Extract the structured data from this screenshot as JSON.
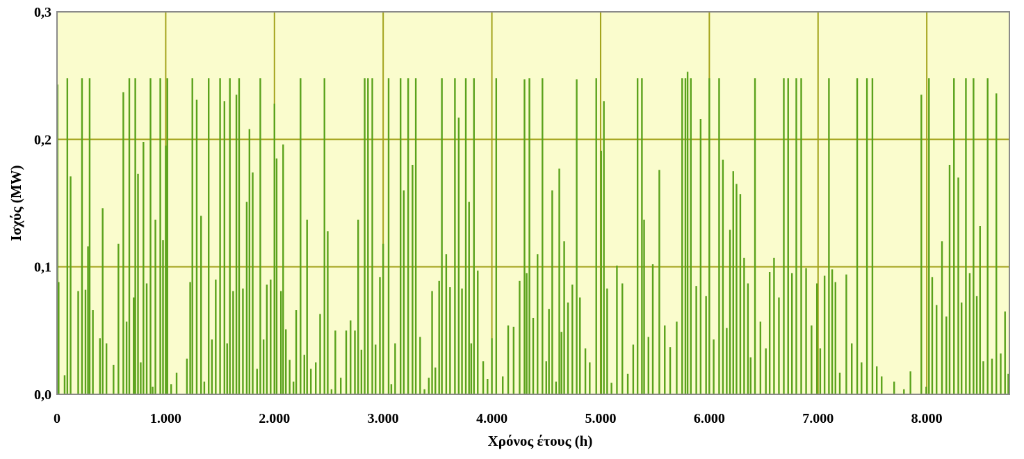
{
  "chart_data": {
    "type": "bar",
    "title": "",
    "xlabel": "Χρόνος έτους (h)",
    "ylabel": "Ισχύς (MW)",
    "xlim": [
      0,
      8760
    ],
    "ylim": [
      0,
      0.3
    ],
    "x_ticks": [
      {
        "value": 0,
        "label": "0"
      },
      {
        "value": 1000,
        "label": "1.000"
      },
      {
        "value": 2000,
        "label": "2.000"
      },
      {
        "value": 3000,
        "label": "3.000"
      },
      {
        "value": 4000,
        "label": "4.000"
      },
      {
        "value": 5000,
        "label": "5.000"
      },
      {
        "value": 6000,
        "label": "6.000"
      },
      {
        "value": 7000,
        "label": "7.000"
      },
      {
        "value": 8000,
        "label": "8.000"
      }
    ],
    "y_ticks": [
      {
        "value": 0,
        "label": "0,0"
      },
      {
        "value": 0.1,
        "label": "0,1"
      },
      {
        "value": 0.2,
        "label": "0,2"
      },
      {
        "value": 0.3,
        "label": "0,3"
      }
    ],
    "grid": true,
    "colors": {
      "plot_background": "#fafccd",
      "gridline": "#a3a31c",
      "series": "#5aa21c",
      "frame": "#8a8a8a"
    },
    "series": [
      {
        "values": [
          [
            5,
            0.243
          ],
          [
            15,
            0.088
          ],
          [
            70,
            0.015
          ],
          [
            95,
            0.248
          ],
          [
            125,
            0.171
          ],
          [
            195,
            0.081
          ],
          [
            230,
            0.248
          ],
          [
            262,
            0.082
          ],
          [
            285,
            0.116
          ],
          [
            300,
            0.248
          ],
          [
            330,
            0.066
          ],
          [
            395,
            0.044
          ],
          [
            420,
            0.146
          ],
          [
            455,
            0.04
          ],
          [
            520,
            0.023
          ],
          [
            565,
            0.118
          ],
          [
            610,
            0.237
          ],
          [
            640,
            0.057
          ],
          [
            665,
            0.248
          ],
          [
            705,
            0.076
          ],
          [
            720,
            0.248
          ],
          [
            745,
            0.173
          ],
          [
            770,
            0.025
          ],
          [
            795,
            0.198
          ],
          [
            825,
            0.087
          ],
          [
            860,
            0.248
          ],
          [
            880,
            0.006
          ],
          [
            905,
            0.137
          ],
          [
            950,
            0.248
          ],
          [
            975,
            0.121
          ],
          [
            1000,
            0.195
          ],
          [
            1015,
            0.248
          ],
          [
            1050,
            0.008
          ],
          [
            1100,
            0.017
          ],
          [
            1195,
            0.028
          ],
          [
            1225,
            0.088
          ],
          [
            1245,
            0.248
          ],
          [
            1285,
            0.231
          ],
          [
            1325,
            0.14
          ],
          [
            1355,
            0.01
          ],
          [
            1395,
            0.248
          ],
          [
            1425,
            0.043
          ],
          [
            1460,
            0.09
          ],
          [
            1500,
            0.248
          ],
          [
            1540,
            0.23
          ],
          [
            1565,
            0.04
          ],
          [
            1590,
            0.248
          ],
          [
            1620,
            0.081
          ],
          [
            1650,
            0.235
          ],
          [
            1675,
            0.248
          ],
          [
            1710,
            0.083
          ],
          [
            1745,
            0.151
          ],
          [
            1770,
            0.208
          ],
          [
            1800,
            0.174
          ],
          [
            1840,
            0.02
          ],
          [
            1870,
            0.248
          ],
          [
            1900,
            0.043
          ],
          [
            1930,
            0.086
          ],
          [
            1965,
            0.09
          ],
          [
            2000,
            0.228
          ],
          [
            2020,
            0.185
          ],
          [
            2060,
            0.081
          ],
          [
            2080,
            0.196
          ],
          [
            2105,
            0.051
          ],
          [
            2140,
            0.027
          ],
          [
            2175,
            0.01
          ],
          [
            2200,
            0.066
          ],
          [
            2240,
            0.248
          ],
          [
            2275,
            0.031
          ],
          [
            2300,
            0.137
          ],
          [
            2335,
            0.02
          ],
          [
            2380,
            0.025
          ],
          [
            2420,
            0.063
          ],
          [
            2460,
            0.248
          ],
          [
            2490,
            0.128
          ],
          [
            2525,
            0.004
          ],
          [
            2560,
            0.05
          ],
          [
            2610,
            0.013
          ],
          [
            2660,
            0.05
          ],
          [
            2700,
            0.058
          ],
          [
            2740,
            0.05
          ],
          [
            2770,
            0.137
          ],
          [
            2800,
            0.035
          ],
          [
            2830,
            0.248
          ],
          [
            2860,
            0.248
          ],
          [
            2900,
            0.248
          ],
          [
            2930,
            0.039
          ],
          [
            2970,
            0.092
          ],
          [
            3000,
            0.118
          ],
          [
            3050,
            0.248
          ],
          [
            3075,
            0.008
          ],
          [
            3110,
            0.04
          ],
          [
            3160,
            0.248
          ],
          [
            3190,
            0.16
          ],
          [
            3230,
            0.248
          ],
          [
            3270,
            0.18
          ],
          [
            3300,
            0.248
          ],
          [
            3340,
            0.045
          ],
          [
            3380,
            0.004
          ],
          [
            3420,
            0.013
          ],
          [
            3450,
            0.081
          ],
          [
            3480,
            0.021
          ],
          [
            3515,
            0.089
          ],
          [
            3540,
            0.248
          ],
          [
            3580,
            0.11
          ],
          [
            3615,
            0.084
          ],
          [
            3660,
            0.248
          ],
          [
            3695,
            0.217
          ],
          [
            3725,
            0.083
          ],
          [
            3760,
            0.248
          ],
          [
            3790,
            0.151
          ],
          [
            3810,
            0.04
          ],
          [
            3835,
            0.248
          ],
          [
            3870,
            0.097
          ],
          [
            3920,
            0.026
          ],
          [
            3960,
            0.012
          ],
          [
            4000,
            0.044
          ],
          [
            4040,
            0.248
          ],
          [
            4100,
            0.014
          ],
          [
            4150,
            0.054
          ],
          [
            4200,
            0.053
          ],
          [
            4255,
            0.089
          ],
          [
            4300,
            0.247
          ],
          [
            4320,
            0.095
          ],
          [
            4345,
            0.248
          ],
          [
            4380,
            0.06
          ],
          [
            4420,
            0.11
          ],
          [
            4465,
            0.248
          ],
          [
            4500,
            0.026
          ],
          [
            4525,
            0.067
          ],
          [
            4555,
            0.16
          ],
          [
            4590,
            0.01
          ],
          [
            4620,
            0.177
          ],
          [
            4640,
            0.049
          ],
          [
            4665,
            0.12
          ],
          [
            4700,
            0.072
          ],
          [
            4740,
            0.086
          ],
          [
            4780,
            0.247
          ],
          [
            4810,
            0.076
          ],
          [
            4860,
            0.036
          ],
          [
            4900,
            0.025
          ],
          [
            4960,
            0.248
          ],
          [
            5005,
            0.191
          ],
          [
            5030,
            0.23
          ],
          [
            5060,
            0.083
          ],
          [
            5100,
            0.009
          ],
          [
            5150,
            0.101
          ],
          [
            5200,
            0.087
          ],
          [
            5250,
            0.016
          ],
          [
            5300,
            0.039
          ],
          [
            5340,
            0.248
          ],
          [
            5380,
            0.248
          ],
          [
            5400,
            0.137
          ],
          [
            5440,
            0.045
          ],
          [
            5480,
            0.102
          ],
          [
            5540,
            0.176
          ],
          [
            5590,
            0.054
          ],
          [
            5640,
            0.037
          ],
          [
            5700,
            0.057
          ],
          [
            5750,
            0.248
          ],
          [
            5780,
            0.248
          ],
          [
            5800,
            0.253
          ],
          [
            5830,
            0.248
          ],
          [
            5880,
            0.085
          ],
          [
            5920,
            0.216
          ],
          [
            5970,
            0.077
          ],
          [
            6000,
            0.248
          ],
          [
            6040,
            0.043
          ],
          [
            6090,
            0.248
          ],
          [
            6125,
            0.184
          ],
          [
            6160,
            0.052
          ],
          [
            6190,
            0.129
          ],
          [
            6220,
            0.175
          ],
          [
            6250,
            0.165
          ],
          [
            6285,
            0.157
          ],
          [
            6320,
            0.107
          ],
          [
            6355,
            0.087
          ],
          [
            6380,
            0.029
          ],
          [
            6420,
            0.248
          ],
          [
            6470,
            0.057
          ],
          [
            6520,
            0.036
          ],
          [
            6555,
            0.096
          ],
          [
            6595,
            0.107
          ],
          [
            6640,
            0.076
          ],
          [
            6685,
            0.248
          ],
          [
            6725,
            0.248
          ],
          [
            6760,
            0.095
          ],
          [
            6800,
            0.248
          ],
          [
            6845,
            0.248
          ],
          [
            6890,
            0.099
          ],
          [
            6940,
            0.054
          ],
          [
            6990,
            0.087
          ],
          [
            7020,
            0.036
          ],
          [
            7060,
            0.093
          ],
          [
            7100,
            0.248
          ],
          [
            7130,
            0.098
          ],
          [
            7160,
            0.088
          ],
          [
            7200,
            0.017
          ],
          [
            7260,
            0.094
          ],
          [
            7310,
            0.04
          ],
          [
            7360,
            0.248
          ],
          [
            7400,
            0.025
          ],
          [
            7450,
            0.248
          ],
          [
            7500,
            0.248
          ],
          [
            7540,
            0.022
          ],
          [
            7585,
            0.014
          ],
          [
            7700,
            0.01
          ],
          [
            7790,
            0.004
          ],
          [
            7850,
            0.018
          ],
          [
            7950,
            0.235
          ],
          [
            7995,
            0.006
          ],
          [
            8020,
            0.248
          ],
          [
            8050,
            0.092
          ],
          [
            8090,
            0.07
          ],
          [
            8140,
            0.12
          ],
          [
            8180,
            0.061
          ],
          [
            8210,
            0.18
          ],
          [
            8250,
            0.248
          ],
          [
            8290,
            0.17
          ],
          [
            8320,
            0.072
          ],
          [
            8360,
            0.248
          ],
          [
            8395,
            0.095
          ],
          [
            8430,
            0.248
          ],
          [
            8460,
            0.077
          ],
          [
            8490,
            0.132
          ],
          [
            8520,
            0.026
          ],
          [
            8560,
            0.248
          ],
          [
            8600,
            0.028
          ],
          [
            8640,
            0.236
          ],
          [
            8680,
            0.032
          ],
          [
            8720,
            0.065
          ],
          [
            8750,
            0.016
          ]
        ]
      }
    ]
  }
}
